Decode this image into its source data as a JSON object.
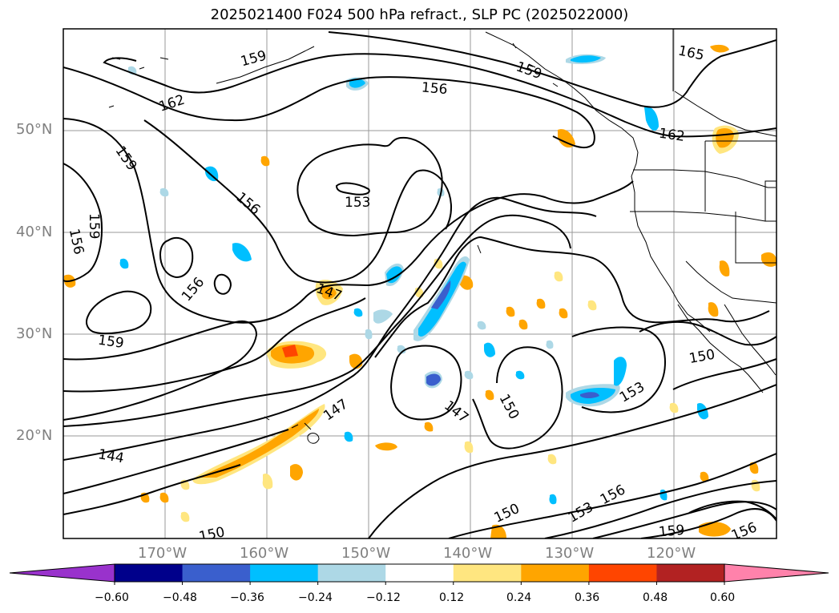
{
  "title": "2025021400 F024 500 hPa refract., SLP PC (2025022000)",
  "lat_labels": [
    "50°N",
    "40°N",
    "30°N",
    "20°N"
  ],
  "lon_labels": [
    "170°W",
    "160°W",
    "150°W",
    "140°W",
    "130°W",
    "120°W"
  ],
  "contour_labels": [
    "159",
    "162",
    "156",
    "159",
    "159",
    "156",
    "156",
    "153",
    "159",
    "156",
    "147",
    "147",
    "147",
    "150",
    "144",
    "150",
    "153",
    "150",
    "153",
    "156",
    "159",
    "156",
    "162",
    "165",
    "159"
  ],
  "colorbar": {
    "tick_labels": [
      "−0.60",
      "−0.48",
      "−0.36",
      "−0.24",
      "−0.12",
      "0.12",
      "0.24",
      "0.36",
      "0.48",
      "0.60"
    ],
    "colors": [
      "#9932cc",
      "#00008b",
      "#3a5fcd",
      "#00bfff",
      "#add8e6",
      "#ffffff",
      "#ffe680",
      "#ffa500",
      "#ff4500",
      "#b22222",
      "#ff82ab"
    ]
  }
}
